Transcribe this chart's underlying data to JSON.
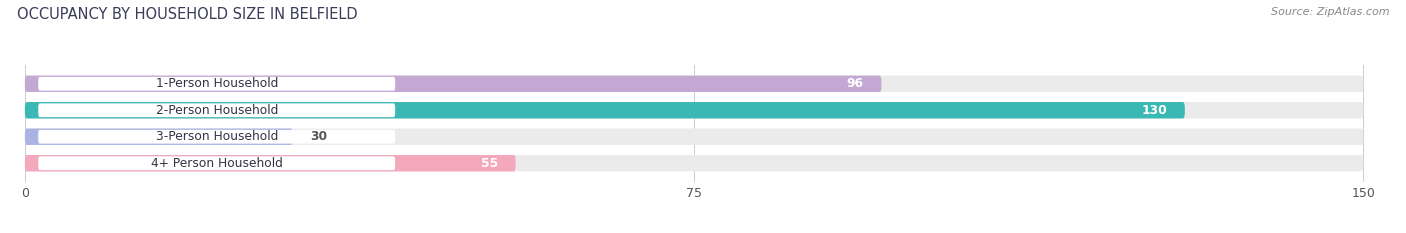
{
  "title": "OCCUPANCY BY HOUSEHOLD SIZE IN BELFIELD",
  "source": "Source: ZipAtlas.com",
  "categories": [
    "1-Person Household",
    "2-Person Household",
    "3-Person Household",
    "4+ Person Household"
  ],
  "values": [
    96,
    130,
    30,
    55
  ],
  "bar_colors": [
    "#c4a8d4",
    "#3ab8b4",
    "#aab4e4",
    "#f4a8bc"
  ],
  "bg_bar_color": "#ebebeb",
  "xlim_min": 0,
  "xlim_max": 150,
  "xticks": [
    0,
    75,
    150
  ],
  "label_box_color": "#ffffff",
  "fig_bg_color": "#ffffff",
  "title_color": "#3a3a5a",
  "source_color": "#888888",
  "value_color_inside": "#ffffff",
  "value_color_outside": "#555555",
  "figsize": [
    14.06,
    2.33
  ],
  "dpi": 100
}
